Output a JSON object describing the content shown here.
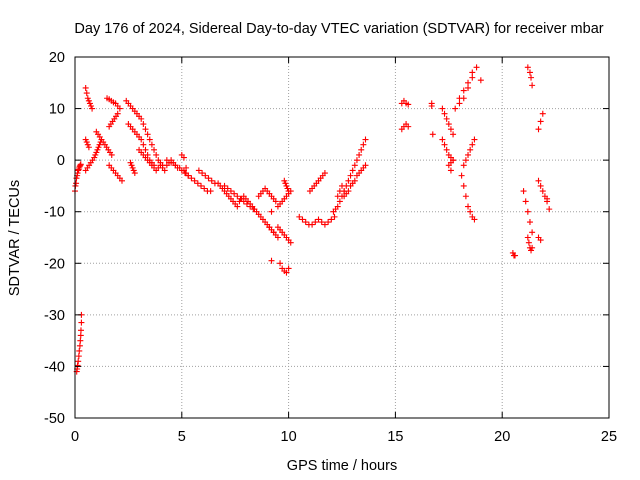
{
  "chart_data": {
    "type": "scatter",
    "title": "Day 176 of 2024, Sidereal Day-to-day VTEC variation (SDTVAR) for receiver mbar",
    "xlabel": "GPS time / hours",
    "ylabel": "SDTVAR / TECUs",
    "xlim": [
      0,
      25
    ],
    "ylim": [
      -50,
      20
    ],
    "xticks": [
      0,
      5,
      10,
      15,
      20,
      25
    ],
    "yticks": [
      -50,
      -40,
      -30,
      -20,
      -10,
      0,
      10,
      20
    ],
    "xtick_labels": [
      "0",
      "5",
      "10",
      "15",
      "20",
      "25"
    ],
    "ytick_labels": [
      "-50",
      "-40",
      "-30",
      "-20",
      "-10",
      "0",
      "10",
      "20"
    ],
    "grid": true,
    "marker": "+",
    "marker_color": "#ff0000",
    "series": [
      {
        "name": "SDTVAR",
        "x": [
          0.0,
          0.05,
          0.1,
          0.15,
          0.2,
          0.25,
          0.02,
          0.07,
          0.12,
          0.17,
          0.22,
          0.27,
          0.3,
          0.3,
          0.28,
          0.27,
          0.25,
          0.23,
          0.2,
          0.18,
          0.15,
          0.12,
          0.1,
          0.08,
          0.5,
          0.55,
          0.6,
          0.65,
          0.7,
          0.75,
          0.8,
          0.5,
          0.55,
          0.6,
          0.65,
          0.5,
          0.58,
          0.66,
          0.74,
          0.82,
          0.9,
          0.95,
          1.0,
          1.05,
          1.1,
          1.15,
          1.2,
          1.0,
          1.08,
          1.16,
          1.24,
          1.32,
          1.4,
          1.48,
          1.56,
          1.64,
          1.72,
          1.6,
          1.7,
          1.8,
          1.9,
          2.0,
          2.1,
          2.2,
          1.5,
          1.6,
          1.7,
          1.8,
          1.9,
          2.0,
          2.1,
          1.6,
          1.68,
          1.76,
          1.84,
          1.92,
          2.0,
          2.4,
          2.5,
          2.6,
          2.7,
          2.8,
          2.9,
          3.0,
          3.1,
          3.2,
          3.3,
          3.4,
          3.5,
          3.6,
          3.7,
          3.8,
          3.9,
          4.0,
          4.1,
          2.5,
          2.6,
          2.7,
          2.8,
          2.9,
          3.0,
          3.1,
          3.2,
          3.3,
          3.4,
          3.5,
          3.6,
          3.7,
          2.6,
          2.65,
          2.7,
          2.75,
          2.8,
          3.0,
          3.1,
          3.2,
          3.3,
          3.4,
          3.5,
          3.6,
          3.7,
          3.8,
          3.9,
          4.0,
          4.1,
          4.2,
          4.3,
          4.4,
          4.5,
          4.6,
          4.7,
          4.8,
          4.3,
          4.5,
          4.7,
          4.9,
          5.1,
          5.2,
          5.3,
          5.0,
          5.15,
          5.3,
          5.45,
          5.6,
          5.75,
          5.9,
          6.05,
          6.2,
          6.35,
          5.8,
          5.95,
          6.1,
          6.25,
          6.4,
          6.55,
          5.0,
          5.1,
          5.2,
          6.7,
          6.8,
          6.9,
          7.0,
          7.1,
          7.2,
          7.3,
          7.4,
          7.5,
          7.6,
          7.7,
          7.8,
          7.9,
          8.0,
          8.1,
          8.2,
          8.3,
          8.4,
          7.0,
          7.15,
          7.3,
          7.45,
          7.6,
          7.75,
          7.9,
          8.05,
          8.2,
          8.35,
          8.5,
          8.6,
          8.7,
          8.8,
          8.9,
          9.0,
          9.1,
          9.2,
          9.3,
          9.4,
          9.5,
          8.6,
          8.7,
          8.8,
          8.9,
          9.0,
          9.1,
          9.2,
          9.3,
          9.4,
          9.8,
          9.85,
          9.9,
          9.95,
          10.0,
          9.5,
          9.6,
          9.7,
          9.8,
          9.9,
          10.0,
          10.1,
          9.5,
          9.6,
          9.7,
          9.8,
          9.9,
          10.0,
          10.1,
          9.6,
          9.7,
          9.8,
          9.9,
          10.0,
          9.1,
          9.2,
          9.3,
          9.2,
          10.5,
          10.65,
          10.8,
          10.95,
          11.1,
          11.25,
          11.4,
          11.55,
          11.7,
          11.85,
          12.0,
          12.15,
          11.0,
          11.1,
          11.2,
          11.3,
          11.4,
          11.5,
          11.6,
          11.7,
          12.1,
          12.2,
          12.3,
          12.4,
          12.5,
          12.6,
          12.7,
          12.8,
          12.9,
          13.0,
          13.1,
          13.2,
          13.3,
          13.4,
          13.5,
          13.6,
          12.6,
          12.7,
          12.8,
          12.9,
          13.0,
          13.1,
          13.2,
          13.3,
          13.4,
          13.5,
          13.6,
          12.3,
          12.4,
          12.5,
          12.6,
          15.3,
          15.4,
          15.5,
          15.6,
          15.3,
          15.4,
          15.5,
          15.6,
          16.7,
          16.75,
          16.7,
          17.2,
          17.3,
          17.4,
          17.5,
          17.6,
          17.7,
          17.2,
          17.3,
          17.4,
          17.5,
          17.6,
          17.7,
          17.5,
          17.6,
          17.7,
          17.6,
          17.8,
          18.0,
          18.2,
          18.4,
          18.6,
          18.8,
          18.1,
          18.2,
          18.3,
          18.4,
          18.5,
          18.6,
          18.7,
          18.2,
          18.3,
          18.4,
          18.5,
          18.6,
          18.7,
          18.0,
          18.2,
          18.4,
          18.6,
          19.0,
          20.5,
          20.55,
          20.6,
          21.0,
          21.1,
          21.2,
          21.3,
          21.4,
          21.2,
          21.25,
          21.3,
          21.35,
          21.4,
          21.7,
          21.8,
          21.9,
          21.7,
          21.8,
          21.9,
          21.7,
          21.8,
          22.0,
          22.1,
          22.2,
          22.1,
          21.2,
          21.3,
          21.35,
          21.4
        ],
        "y": [
          -6.0,
          -4.5,
          -3.0,
          -2.0,
          -1.5,
          -1.0,
          -5.0,
          -3.5,
          -2.5,
          -1.8,
          -1.2,
          -0.8,
          -30.0,
          -31.5,
          -33.0,
          -34.0,
          -35.0,
          -36.0,
          -37.0,
          -38.0,
          -39.0,
          -39.8,
          -40.5,
          -41.0,
          14.0,
          13.0,
          12.0,
          11.5,
          11.0,
          10.5,
          10.0,
          4.0,
          3.5,
          3.0,
          2.5,
          -2.0,
          -1.5,
          -1.0,
          -0.5,
          0.0,
          0.5,
          1.0,
          1.5,
          2.0,
          2.5,
          3.0,
          3.5,
          5.5,
          5.0,
          4.5,
          4.0,
          3.5,
          3.0,
          2.5,
          2.0,
          1.5,
          1.0,
          -1.0,
          -1.5,
          -2.0,
          -2.5,
          -3.0,
          -3.5,
          -4.0,
          12.0,
          11.8,
          11.5,
          11.2,
          11.0,
          10.5,
          10.0,
          6.5,
          7.0,
          7.5,
          8.0,
          8.5,
          9.0,
          11.5,
          11.0,
          10.5,
          10.0,
          9.5,
          9.0,
          8.5,
          8.0,
          7.0,
          6.0,
          5.0,
          4.0,
          3.0,
          2.0,
          1.0,
          0.0,
          -0.5,
          -1.0,
          7.0,
          6.5,
          6.0,
          5.5,
          5.0,
          4.5,
          4.0,
          3.0,
          2.0,
          1.0,
          0.0,
          -0.5,
          -1.0,
          -0.5,
          -1.0,
          -1.5,
          -2.0,
          -2.5,
          2.0,
          1.5,
          1.0,
          0.5,
          0.0,
          -0.5,
          -1.0,
          -1.5,
          -2.0,
          -1.5,
          -1.0,
          -1.5,
          -2.0,
          -1.0,
          -0.5,
          0.0,
          -0.5,
          -1.0,
          -1.5,
          0.0,
          -0.5,
          -1.0,
          -1.5,
          -2.0,
          -2.5,
          -3.0,
          -2.0,
          -2.5,
          -3.0,
          -3.5,
          -4.0,
          -4.5,
          -5.0,
          -5.5,
          -6.0,
          -6.0,
          -2.0,
          -2.5,
          -3.0,
          -3.5,
          -4.0,
          -4.5,
          1.0,
          0.5,
          -1.5,
          -4.5,
          -5.0,
          -5.5,
          -6.0,
          -6.5,
          -7.0,
          -7.5,
          -8.0,
          -8.5,
          -9.0,
          -8.0,
          -7.5,
          -7.0,
          -7.5,
          -8.0,
          -8.5,
          -9.0,
          -9.5,
          -5.0,
          -5.5,
          -6.0,
          -6.5,
          -7.0,
          -7.5,
          -8.0,
          -8.5,
          -9.0,
          -9.5,
          -10.0,
          -10.5,
          -11.0,
          -11.5,
          -12.0,
          -12.5,
          -13.0,
          -13.5,
          -14.0,
          -14.5,
          -15.0,
          -7.0,
          -6.5,
          -6.0,
          -5.5,
          -6.0,
          -6.5,
          -7.0,
          -7.5,
          -8.0,
          -4.0,
          -4.5,
          -5.0,
          -5.5,
          -6.0,
          -13.0,
          -13.5,
          -14.0,
          -14.5,
          -15.0,
          -15.5,
          -16.0,
          -9.0,
          -8.5,
          -8.0,
          -7.5,
          -7.0,
          -6.5,
          -6.0,
          -20.0,
          -21.0,
          -21.5,
          -21.8,
          -21.0,
          -13.0,
          -10.0,
          -14.0,
          -19.5,
          -11.0,
          -11.5,
          -12.0,
          -12.5,
          -12.5,
          -12.0,
          -11.5,
          -12.0,
          -12.5,
          -12.0,
          -11.5,
          -11.0,
          -6.0,
          -5.5,
          -5.0,
          -4.5,
          -4.0,
          -3.5,
          -3.0,
          -2.5,
          -10.0,
          -9.5,
          -9.0,
          -8.0,
          -7.0,
          -6.0,
          -5.0,
          -4.0,
          -3.0,
          -2.0,
          -1.0,
          0.0,
          1.0,
          2.0,
          3.0,
          4.0,
          -7.0,
          -6.5,
          -6.0,
          -5.0,
          -4.5,
          -4.0,
          -3.0,
          -2.5,
          -2.0,
          -1.5,
          -1.0,
          -7.0,
          -6.0,
          -5.0,
          -6.0,
          11.0,
          11.5,
          11.0,
          10.8,
          6.0,
          6.5,
          7.0,
          6.5,
          11.0,
          5.0,
          10.5,
          10.0,
          9.0,
          8.0,
          7.0,
          6.0,
          5.0,
          4.0,
          3.0,
          2.0,
          1.0,
          0.5,
          0.0,
          -1.0,
          -0.5,
          0.0,
          -2.0,
          10.0,
          11.0,
          12.0,
          14.0,
          16.0,
          18.0,
          -3.0,
          -5.0,
          -7.0,
          -9.0,
          -10.0,
          -11.0,
          -11.5,
          -1.0,
          0.0,
          1.0,
          2.0,
          3.0,
          4.0,
          12.0,
          13.5,
          15.0,
          17.0,
          15.5,
          -18.0,
          -18.5,
          -18.5,
          -6.0,
          -8.0,
          -10.0,
          -12.0,
          -14.0,
          -15.0,
          -16.0,
          -17.0,
          -17.5,
          -17.0,
          6.0,
          7.5,
          9.0,
          -4.0,
          -5.0,
          -6.0,
          -15.0,
          -15.5,
          -7.0,
          -8.0,
          -9.5,
          -7.5,
          18.0,
          17.0,
          16.0,
          14.5
        ]
      }
    ]
  }
}
